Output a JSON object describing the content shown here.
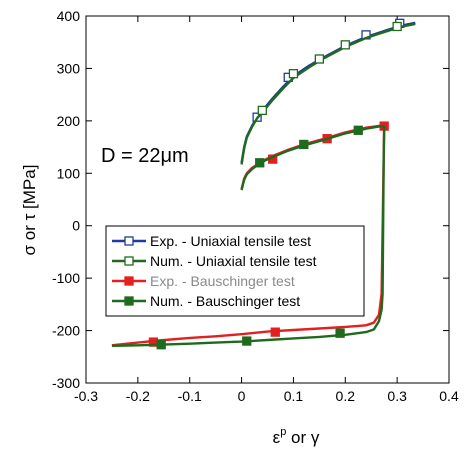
{
  "chart_data": {
    "type": "line",
    "title": "",
    "xlabel": {
      "base": "ε",
      "sup": "p",
      "rest": " or γ"
    },
    "ylabel": "σ or τ [MPa]",
    "xlim": [
      -0.3,
      0.4
    ],
    "ylim": [
      -300,
      400
    ],
    "xticks": [
      -0.3,
      -0.2,
      -0.1,
      0,
      0.1,
      0.2,
      0.3,
      0.4
    ],
    "yticks": [
      -300,
      -200,
      -100,
      0,
      100,
      200,
      300,
      400
    ],
    "xtick_labels": [
      "-0.3",
      "-0.2",
      "-0.1",
      "0",
      "0.1",
      "0.2",
      "0.3",
      "0.4"
    ],
    "ytick_labels": [
      "-300",
      "-200",
      "-100",
      "0",
      "100",
      "200",
      "300",
      "400"
    ],
    "grid": false,
    "legend_position": "center-left",
    "annotation": "D = 22μm",
    "series": [
      {
        "name": "Exp. - Uniaxial tensile test",
        "color": "#1f3c9c",
        "marker": "open-square",
        "x": [
          0.0,
          0.005,
          0.01,
          0.02,
          0.03,
          0.045,
          0.06,
          0.08,
          0.1,
          0.13,
          0.16,
          0.2,
          0.24,
          0.28,
          0.31,
          0.335
        ],
        "y": [
          120,
          150,
          170,
          190,
          207,
          225,
          243,
          265,
          285,
          305,
          322,
          343,
          360,
          373,
          382,
          387
        ],
        "markers_x": [
          0.03,
          0.09,
          0.24,
          0.305
        ],
        "markers_y": [
          207,
          283,
          364,
          386
        ]
      },
      {
        "name": "Num. - Uniaxial tensile test",
        "color": "#1e6b1e",
        "marker": "open-square",
        "x": [
          0.0,
          0.005,
          0.01,
          0.02,
          0.03,
          0.045,
          0.06,
          0.08,
          0.1,
          0.13,
          0.16,
          0.2,
          0.24,
          0.28,
          0.31,
          0.335
        ],
        "y": [
          117,
          148,
          168,
          188,
          205,
          222,
          240,
          262,
          282,
          302,
          320,
          341,
          358,
          371,
          380,
          385
        ],
        "markers_x": [
          0.04,
          0.1,
          0.15,
          0.2,
          0.3
        ],
        "markers_y": [
          220,
          290,
          318,
          345,
          380
        ]
      },
      {
        "name": "Exp. - Bauschinger test",
        "color": "#e32020",
        "marker": "filled-square",
        "x": [
          0.0,
          0.005,
          0.01,
          0.02,
          0.04,
          0.06,
          0.09,
          0.12,
          0.16,
          0.2,
          0.24,
          0.27,
          0.275,
          0.274,
          0.27,
          0.265,
          0.255,
          0.24,
          0.2,
          0.15,
          0.1,
          0.05,
          0.0,
          -0.05,
          -0.1,
          -0.16,
          -0.2,
          -0.25
        ],
        "y": [
          70,
          90,
          100,
          110,
          123,
          133,
          145,
          155,
          166,
          178,
          187,
          191,
          190,
          130,
          -130,
          -170,
          -185,
          -190,
          -193,
          -196,
          -199,
          -202,
          -207,
          -211,
          -214,
          -219,
          -223,
          -228
        ],
        "markers_x": [
          0.06,
          0.165,
          0.275,
          0.065,
          -0.17
        ],
        "markers_y": [
          127,
          166,
          190,
          -203,
          -222
        ]
      },
      {
        "name": "Num. - Bauschinger test",
        "color": "#1e6b1e",
        "marker": "filled-square",
        "x": [
          0.0,
          0.005,
          0.01,
          0.02,
          0.04,
          0.06,
          0.09,
          0.12,
          0.16,
          0.2,
          0.24,
          0.27,
          0.275,
          0.274,
          0.272,
          0.27,
          0.265,
          0.255,
          0.24,
          0.2,
          0.15,
          0.1,
          0.05,
          0.0,
          -0.05,
          -0.1,
          -0.16,
          -0.2,
          -0.25
        ],
        "y": [
          68,
          88,
          98,
          108,
          122,
          131,
          143,
          153,
          164,
          176,
          185,
          190,
          189,
          130,
          -130,
          -160,
          -182,
          -198,
          -203,
          -208,
          -212,
          -215,
          -218,
          -221,
          -223,
          -225,
          -227,
          -228,
          -229
        ],
        "markers_x": [
          0.035,
          0.12,
          0.225,
          0.19,
          0.01,
          -0.155
        ],
        "markers_y": [
          120,
          155,
          182,
          -205,
          -220,
          -227
        ]
      }
    ]
  }
}
